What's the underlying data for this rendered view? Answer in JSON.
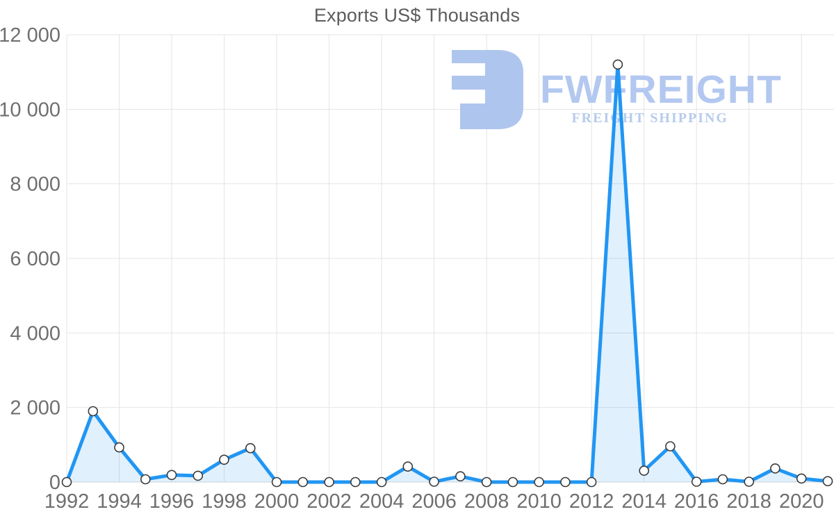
{
  "chart_data": {
    "type": "area",
    "title": "Exports US$ Thousands",
    "xlabel": "",
    "ylabel": "",
    "x": [
      1992,
      1993,
      1994,
      1995,
      1996,
      1997,
      1998,
      1999,
      2000,
      2001,
      2002,
      2003,
      2004,
      2005,
      2006,
      2007,
      2008,
      2009,
      2010,
      2011,
      2012,
      2013,
      2014,
      2015,
      2016,
      2017,
      2018,
      2019,
      2020,
      2021
    ],
    "values": [
      0,
      1900,
      930,
      75,
      190,
      170,
      600,
      910,
      0,
      0,
      0,
      0,
      0,
      415,
      10,
      155,
      0,
      0,
      0,
      0,
      0,
      11200,
      305,
      960,
      10,
      75,
      10,
      365,
      95,
      25
    ],
    "ylim": [
      0,
      12000
    ],
    "yticks": [
      {
        "value": 0,
        "label": "0"
      },
      {
        "value": 2000,
        "label": "2 000"
      },
      {
        "value": 4000,
        "label": "4 000"
      },
      {
        "value": 6000,
        "label": "6 000"
      },
      {
        "value": 8000,
        "label": "8 000"
      },
      {
        "value": 10000,
        "label": "10 000"
      },
      {
        "value": 12000,
        "label": "12 000"
      }
    ],
    "xticks": [
      {
        "value": 1992,
        "label": "1992"
      },
      {
        "value": 1994,
        "label": "1994"
      },
      {
        "value": 1996,
        "label": "1996"
      },
      {
        "value": 1998,
        "label": "1998"
      },
      {
        "value": 2000,
        "label": "2000"
      },
      {
        "value": 2002,
        "label": "2002"
      },
      {
        "value": 2004,
        "label": "2004"
      },
      {
        "value": 2006,
        "label": "2006"
      },
      {
        "value": 2008,
        "label": "2008"
      },
      {
        "value": 2010,
        "label": "2010"
      },
      {
        "value": 2012,
        "label": "2012"
      },
      {
        "value": 2014,
        "label": "2014"
      },
      {
        "value": 2016,
        "label": "2016"
      },
      {
        "value": 2018,
        "label": "2018"
      },
      {
        "value": 2020,
        "label": "2020"
      }
    ],
    "grid": true,
    "legend": "none",
    "colors": {
      "line": "#2196f3",
      "fill": "rgba(33,150,243,0.14)",
      "marker_fill": "#ffffff",
      "marker_stroke": "#3a3a3a",
      "grid": "#e4e4e4",
      "axis": "#d6d6d6",
      "title_text": "#5c5c5c",
      "tick_text": "#6f6f6f"
    }
  },
  "watermark": {
    "brand": "FWFREIGHT",
    "tagline": "FREIGHT SHIPPING",
    "icon": "fwfreight-logo-icon",
    "color_icon": "#aec5ee",
    "color_brand": "#b3c8f0",
    "color_tagline": "#b7cbec"
  }
}
